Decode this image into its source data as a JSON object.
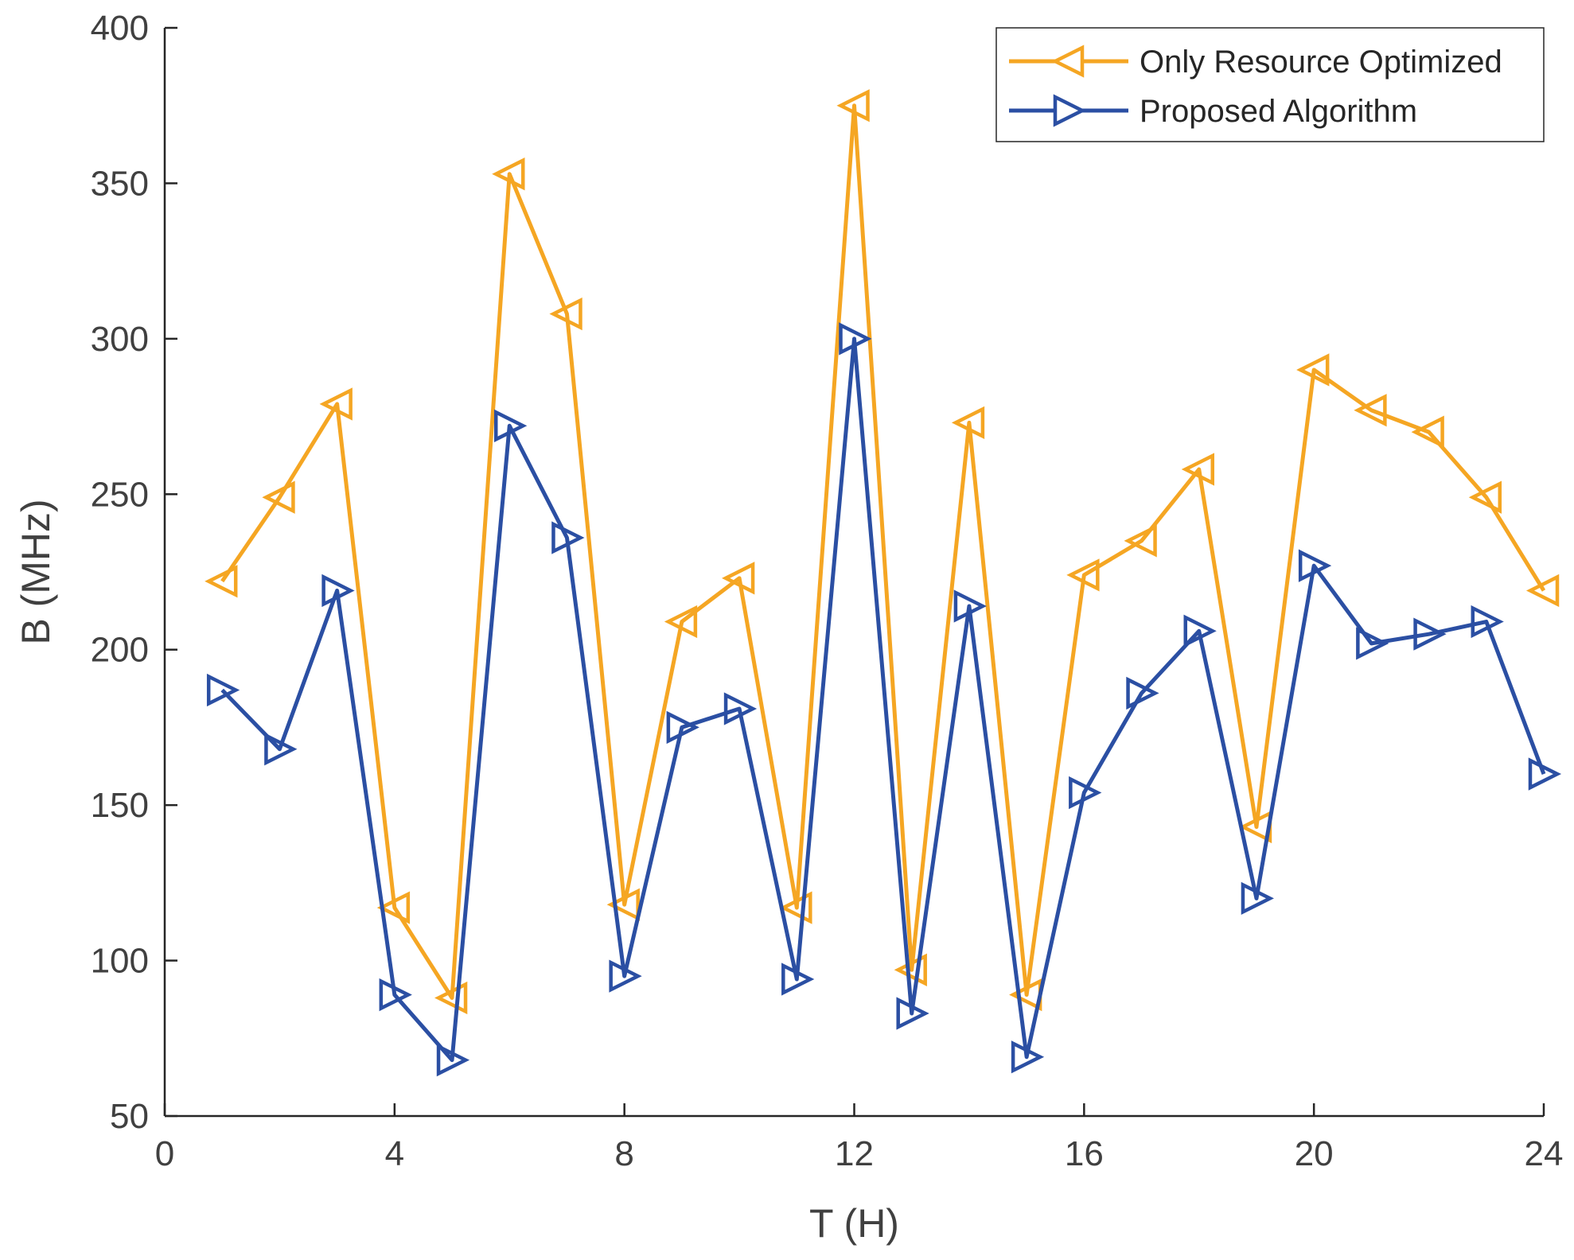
{
  "chart_data": {
    "type": "line",
    "title": "",
    "xlabel": "T (H)",
    "ylabel": "B (MHz)",
    "xlim": [
      0,
      24
    ],
    "ylim": [
      50,
      400
    ],
    "xticks": [
      0,
      4,
      8,
      12,
      16,
      20,
      24
    ],
    "yticks": [
      50,
      100,
      150,
      200,
      250,
      300,
      350,
      400
    ],
    "x": [
      1,
      2,
      3,
      4,
      5,
      6,
      7,
      8,
      9,
      10,
      11,
      12,
      13,
      14,
      15,
      16,
      17,
      18,
      19,
      20,
      21,
      22,
      23,
      24
    ],
    "series": [
      {
        "name": "Only Resource Optimized",
        "color": "#f5a623",
        "marker": "triangle-left",
        "values": [
          222,
          249,
          279,
          117,
          88,
          353,
          308,
          118,
          209,
          223,
          117,
          375,
          97,
          273,
          89,
          224,
          235,
          258,
          143,
          290,
          277,
          270,
          249,
          219
        ]
      },
      {
        "name": "Proposed Algorithm",
        "color": "#2b4fa3",
        "marker": "triangle-right",
        "values": [
          187,
          168,
          219,
          89,
          68,
          272,
          236,
          95,
          175,
          181,
          94,
          300,
          83,
          214,
          69,
          154,
          186,
          206,
          120,
          227,
          202,
          205,
          209,
          160
        ]
      }
    ],
    "legend_position": "top-right",
    "grid": false
  }
}
